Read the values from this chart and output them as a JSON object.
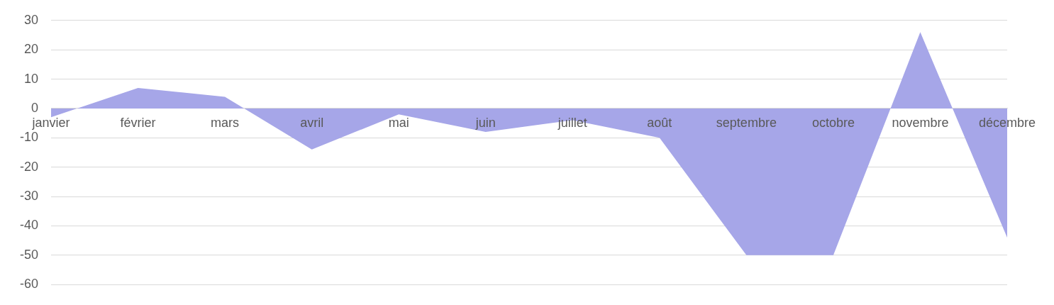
{
  "chart_data": {
    "type": "area",
    "categories": [
      "janvier",
      "février",
      "mars",
      "avril",
      "mai",
      "juin",
      "juillet",
      "août",
      "septembre",
      "octobre",
      "novembre",
      "décembre"
    ],
    "series": [
      {
        "color": "#a6a6e8",
        "values": [
          -3,
          7,
          4,
          -14,
          -2,
          -8,
          -4,
          -10,
          -50,
          -50,
          26,
          -44
        ]
      }
    ],
    "ylim": [
      -60,
      30
    ],
    "yticks": [
      -60,
      -50,
      -40,
      -30,
      -20,
      -10,
      0,
      10,
      20,
      30
    ],
    "grid": "y",
    "legend": false
  }
}
